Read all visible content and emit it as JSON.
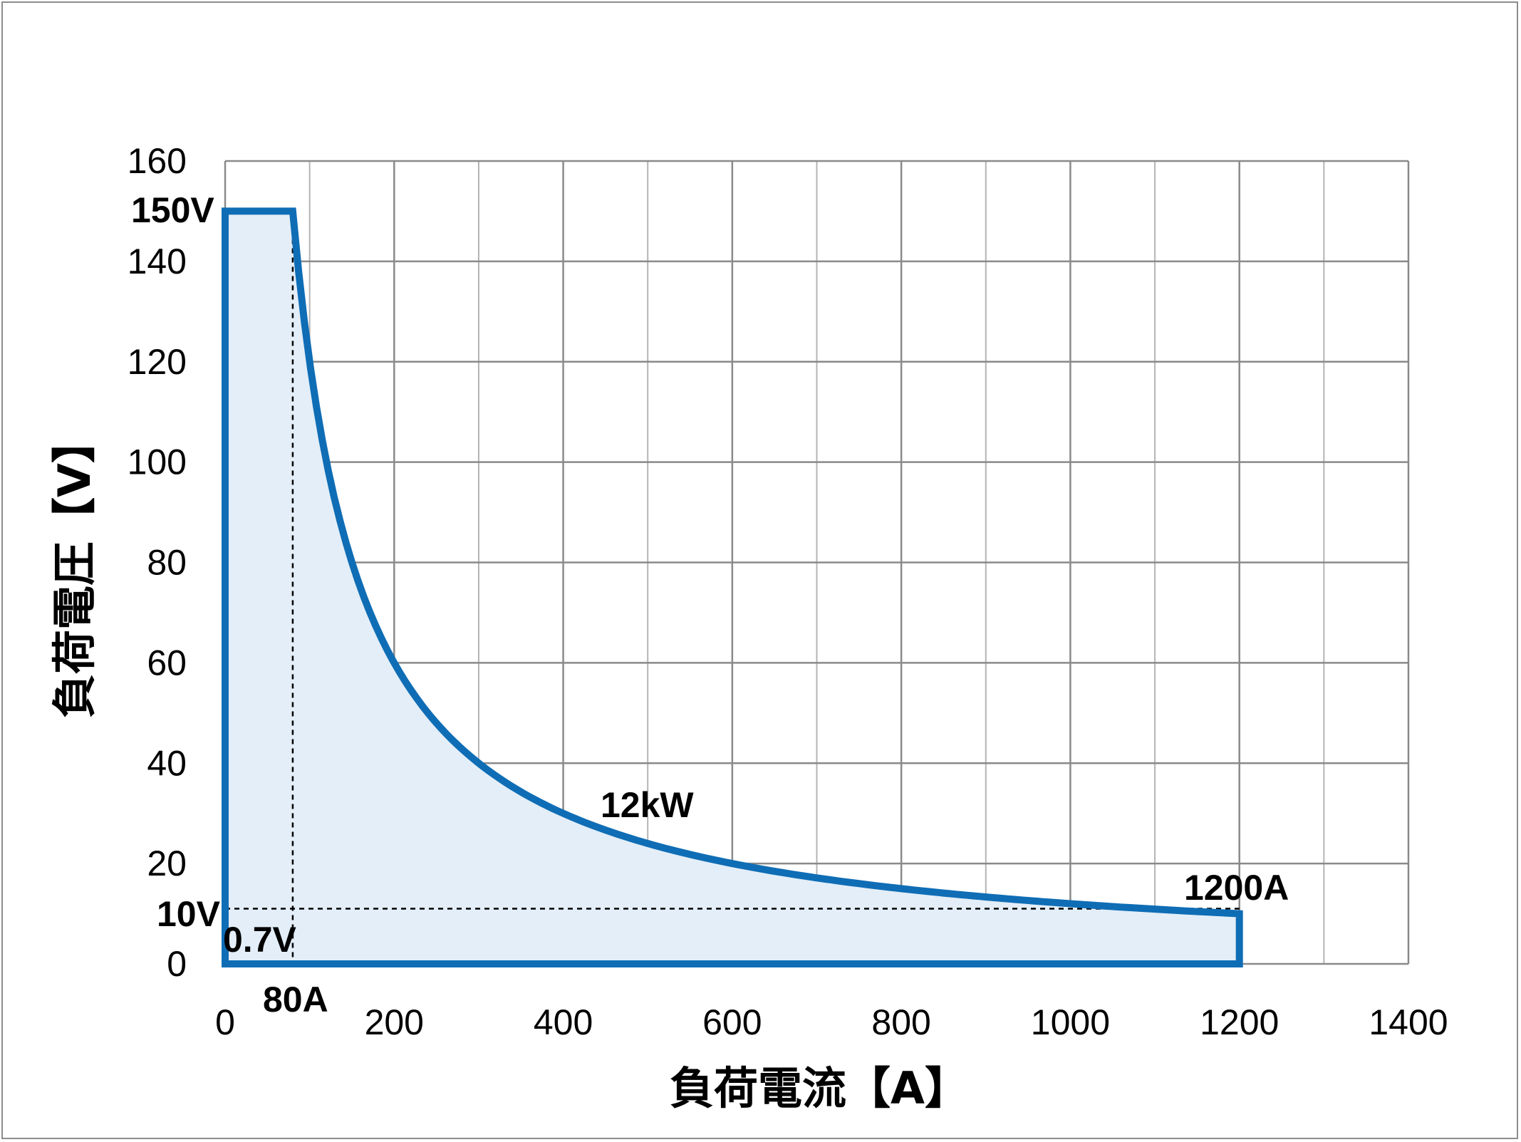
{
  "chart_data": {
    "type": "area",
    "xlabel": "負荷電流【A】",
    "ylabel": "負荷電圧【V】",
    "xlim": [
      0,
      1400
    ],
    "ylim": [
      0,
      160
    ],
    "x_ticks": [
      0,
      200,
      400,
      600,
      800,
      1000,
      1200,
      1400
    ],
    "y_ticks": [
      0,
      20,
      40,
      60,
      80,
      100,
      120,
      140,
      160
    ],
    "x_tick_labels": [
      "0",
      "200",
      "400",
      "600",
      "800",
      "1000",
      "1200",
      "1400"
    ],
    "y_tick_labels": [
      "0",
      "20",
      "40",
      "60",
      "80",
      "100",
      "120",
      "140",
      "160"
    ],
    "x_minor_step": 100,
    "grid": true,
    "series": [
      {
        "boundary": [
          {
            "x": 0,
            "y": 150
          },
          {
            "x": 80,
            "y": 150
          },
          {
            "constant_power_kw": 12,
            "from_x": 80,
            "to_x": 1200
          },
          {
            "x": 1200,
            "y": 10
          },
          {
            "x": 1200,
            "y": 0
          },
          {
            "x": 0,
            "y": 0
          }
        ]
      }
    ],
    "guides": [
      {
        "from": [
          80,
          150
        ],
        "to": [
          80,
          0
        ]
      },
      {
        "from": [
          0,
          11
        ],
        "to": [
          1200,
          11
        ]
      }
    ],
    "annotations": {
      "v_max": "150V",
      "v_mid": "10V",
      "v_min": "0.7V",
      "i_knee": "80A",
      "power": "12kW",
      "i_max": "1200A"
    },
    "colors": {
      "line": "#0f6db5",
      "fill": "#e3eef8",
      "grid": "#8a8a8a",
      "grid_minor": "#b4b4b4"
    }
  }
}
